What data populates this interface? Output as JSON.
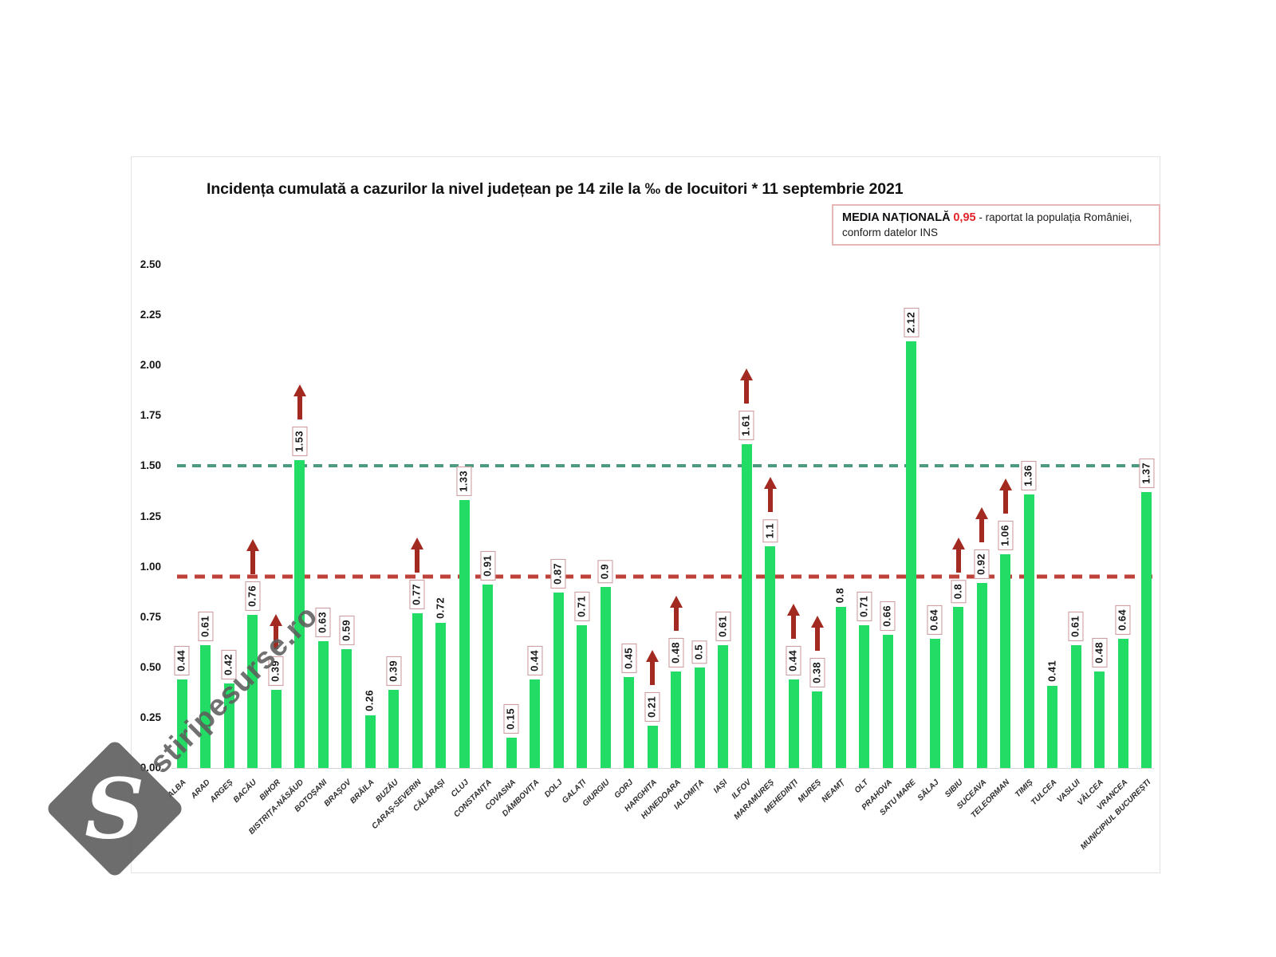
{
  "title": "Incidența cumulată a cazurilor la nivel județean pe 14 zile la ‰ de locuitori * 11 septembrie 2021",
  "legend": {
    "label": "MEDIA NAȚIONALĂ",
    "value": "0,95",
    "suffix": "- raportat la populația României,",
    "line2": "conform datelor INS"
  },
  "watermark": {
    "text": "stiripesurse.ro",
    "logo_letter": "S"
  },
  "colors": {
    "bar": "#23dc66",
    "increase_arrow": "#a32a20",
    "value_label_box_border": "#c9969a",
    "upper_threshold_line": "#4d9b7e",
    "national_average_line": "#bf423a",
    "legend_value_red": "#e3242b"
  },
  "chart_data": {
    "type": "bar",
    "title": "Incidența cumulată a cazurilor la nivel județean pe 14 zile la ‰ de locuitori * 11 septembrie 2021",
    "xlabel": "",
    "ylabel": "",
    "ylim": [
      0,
      2.5
    ],
    "ytick_labels": [
      "2.50",
      "2.25",
      "2.00",
      "1.75",
      "1.50",
      "1.25",
      "1.00",
      "0.75",
      "0.50",
      "0.25",
      "0.00"
    ],
    "grid": false,
    "legend_position": "top-right",
    "bar_color": "#23dc66",
    "national_average": 0.95,
    "reference_lines": [
      {
        "name": "upper-threshold",
        "value": 1.5,
        "color": "#4d9b7e",
        "style": "dashed"
      },
      {
        "name": "national-average",
        "value": 0.95,
        "color": "#bf423a",
        "style": "dashed"
      }
    ],
    "categories": [
      "ALBA",
      "ARAD",
      "ARGEȘ",
      "BACĂU",
      "BIHOR",
      "BISTRIȚA-NĂSĂUD",
      "BOTOȘANI",
      "BRAȘOV",
      "BRĂILA",
      "BUZĂU",
      "CARAȘ-SEVERIN",
      "CĂLĂRAȘI",
      "CLUJ",
      "CONSTANȚA",
      "COVASNA",
      "DÂMBOVIȚA",
      "DOLJ",
      "GALAȚI",
      "GIURGIU",
      "GORJ",
      "HARGHITA",
      "HUNEDOARA",
      "IALOMIȚA",
      "IAȘI",
      "ILFOV",
      "MARAMUREȘ",
      "MEHEDINȚI",
      "MUREȘ",
      "NEAMȚ",
      "OLT",
      "PRAHOVA",
      "SATU MARE",
      "SĂLAJ",
      "SIBIU",
      "SUCEAVA",
      "TELEORMAN",
      "TIMIȘ",
      "TULCEA",
      "VASLUI",
      "VÂLCEA",
      "VRANCEA",
      "MUNICIPIUL BUCUREȘTI"
    ],
    "values": [
      0.44,
      0.61,
      0.42,
      0.76,
      0.39,
      1.53,
      0.63,
      0.59,
      0.26,
      0.39,
      0.77,
      0.72,
      1.33,
      0.91,
      0.15,
      0.44,
      0.87,
      0.71,
      0.9,
      0.45,
      0.21,
      0.48,
      0.5,
      0.61,
      1.61,
      1.1,
      0.44,
      0.38,
      0.8,
      0.71,
      0.66,
      2.12,
      0.64,
      0.8,
      0.92,
      1.06,
      1.36,
      0.41,
      0.61,
      0.48,
      0.64,
      1.37
    ],
    "value_labels": [
      "0.44",
      "0.61",
      "0.42",
      "0.76",
      "0.39",
      "1.53",
      "0.63",
      "0.59",
      "0.26",
      "0.39",
      "0.77",
      "0.72",
      "1.33",
      "0.91",
      "0.15",
      "0.44",
      "0.87",
      "0.71",
      "0.9",
      "0.45",
      "0.21",
      "0.48",
      "0.5",
      "0.61",
      "1.61",
      "1.1",
      "0.44",
      "0.38",
      "0.8",
      "0.71",
      "0.66",
      "2.12",
      "0.64",
      "0.8",
      "0.92",
      "1.06",
      "1.36",
      "0.41",
      "0.61",
      "0.48",
      "0.64",
      "1.37"
    ],
    "unboxed_label_indices": [
      8,
      11,
      28,
      37
    ],
    "increase_arrow_indices": [
      3,
      4,
      5,
      10,
      20,
      21,
      24,
      25,
      26,
      27,
      33,
      34,
      35
    ]
  }
}
